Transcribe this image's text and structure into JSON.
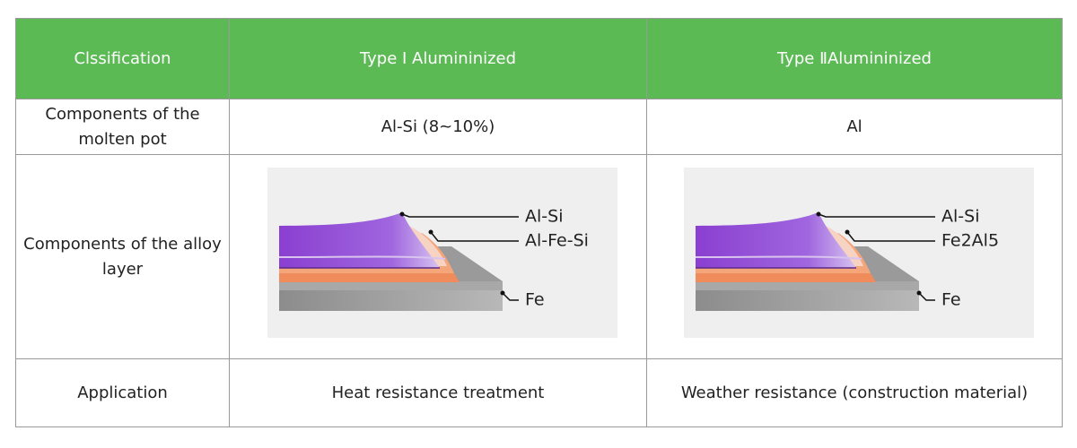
{
  "table": {
    "header": [
      "Clssification",
      "Type Ⅰ Alumininized",
      "Type ⅡAlumininized"
    ],
    "rows": [
      [
        "Components of the molten pot",
        "Al-Si (8~10%)",
        "Al"
      ],
      [
        "Components of the alloy layer",
        {
          "layers": [
            "Al-Si",
            "Al-Fe-Si",
            "Fe"
          ]
        },
        {
          "layers": [
            "Al-Si",
            "Fe2Al5",
            "Fe"
          ]
        }
      ],
      [
        "Application",
        "Heat resistance treatment",
        "Weather resistance (construction material)"
      ]
    ]
  }
}
